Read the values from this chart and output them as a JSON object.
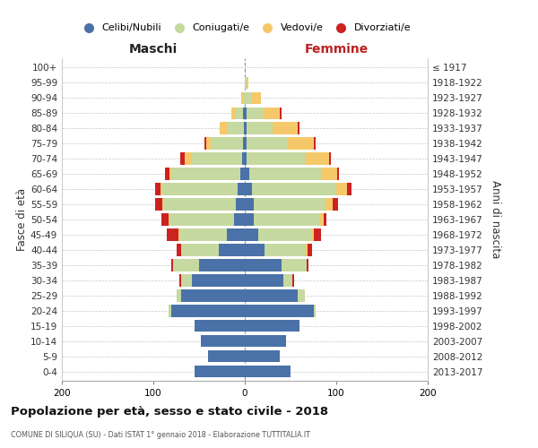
{
  "age_groups": [
    "0-4",
    "5-9",
    "10-14",
    "15-19",
    "20-24",
    "25-29",
    "30-34",
    "35-39",
    "40-44",
    "45-49",
    "50-54",
    "55-59",
    "60-64",
    "65-69",
    "70-74",
    "75-79",
    "80-84",
    "85-89",
    "90-94",
    "95-99",
    "100+"
  ],
  "birth_years": [
    "2013-2017",
    "2008-2012",
    "2003-2007",
    "1998-2002",
    "1993-1997",
    "1988-1992",
    "1983-1987",
    "1978-1982",
    "1973-1977",
    "1968-1972",
    "1963-1967",
    "1958-1962",
    "1953-1957",
    "1948-1952",
    "1943-1947",
    "1938-1942",
    "1933-1937",
    "1928-1932",
    "1923-1927",
    "1918-1922",
    "≤ 1917"
  ],
  "colors": {
    "celibi": "#4a72a8",
    "coniugati": "#c5d9a0",
    "vedovi": "#f5c96a",
    "divorziati": "#cc2222"
  },
  "maschi_celibi": [
    55,
    40,
    48,
    55,
    80,
    70,
    58,
    50,
    28,
    20,
    12,
    10,
    8,
    5,
    3,
    2,
    1,
    2,
    0,
    0,
    0
  ],
  "maschi_coniugati": [
    0,
    0,
    0,
    0,
    3,
    5,
    12,
    28,
    42,
    52,
    70,
    78,
    82,
    75,
    55,
    35,
    18,
    8,
    2,
    0,
    0
  ],
  "maschi_vedovi": [
    0,
    0,
    0,
    0,
    0,
    0,
    0,
    0,
    0,
    1,
    1,
    2,
    2,
    2,
    8,
    5,
    8,
    5,
    2,
    0,
    0
  ],
  "maschi_divorziati": [
    0,
    0,
    0,
    0,
    0,
    0,
    2,
    2,
    5,
    12,
    8,
    8,
    6,
    5,
    5,
    2,
    0,
    0,
    0,
    0,
    0
  ],
  "femmine_celibi": [
    50,
    38,
    45,
    60,
    75,
    58,
    42,
    40,
    22,
    15,
    10,
    10,
    8,
    5,
    2,
    2,
    2,
    2,
    0,
    0,
    0
  ],
  "femmine_coniugati": [
    0,
    0,
    0,
    0,
    2,
    8,
    10,
    28,
    45,
    58,
    72,
    78,
    92,
    78,
    65,
    45,
    28,
    18,
    8,
    2,
    0
  ],
  "femmine_vedovi": [
    0,
    0,
    0,
    0,
    0,
    0,
    0,
    0,
    2,
    2,
    4,
    8,
    12,
    18,
    25,
    28,
    28,
    18,
    10,
    2,
    0
  ],
  "femmine_divorziati": [
    0,
    0,
    0,
    0,
    0,
    0,
    2,
    2,
    5,
    8,
    3,
    6,
    5,
    2,
    2,
    2,
    2,
    2,
    0,
    0,
    0
  ],
  "title": "Popolazione per età, sesso e stato civile - 2018",
  "subtitle": "COMUNE DI SILIQUA (SU) - Dati ISTAT 1° gennaio 2018 - Elaborazione TUTTITALIA.IT",
  "xlabel_left": "Maschi",
  "xlabel_right": "Femmine",
  "ylabel_left": "Fasce di età",
  "ylabel_right": "Anni di nascita",
  "legend_labels": [
    "Celibi/Nubili",
    "Coniugati/e",
    "Vedovi/e",
    "Divorziati/e"
  ],
  "bar_height": 0.78
}
